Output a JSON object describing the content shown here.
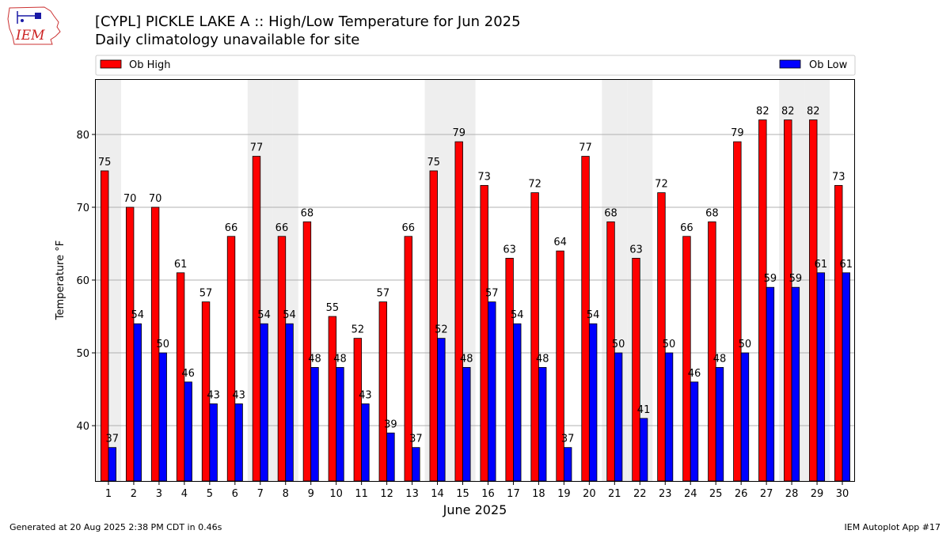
{
  "page": {
    "title": "[CYPL] PICKLE LAKE  A :: High/Low Temperature for Jun 2025",
    "subtitle": "Daily climatology unavailable for site",
    "footer_left": "Generated at 20 Aug 2025 2:38 PM CDT in 0.46s",
    "footer_right": "IEM Autoplot App #17",
    "logo_text": "IEM"
  },
  "colors": {
    "high": "#ff0000",
    "low": "#0000ff",
    "weekend_band": "#eeeeee",
    "grid": "#b0b0b0"
  },
  "chart_data": {
    "type": "bar",
    "xlabel": "June 2025",
    "ylabel": "Temperature °F",
    "ylim": [
      32.4,
      87.6
    ],
    "yticks": [
      40,
      50,
      60,
      70,
      80
    ],
    "grid": "horizontal",
    "legend_placement": "top",
    "categories": [
      "1",
      "2",
      "3",
      "4",
      "5",
      "6",
      "7",
      "8",
      "9",
      "10",
      "11",
      "12",
      "13",
      "14",
      "15",
      "16",
      "17",
      "18",
      "19",
      "20",
      "21",
      "22",
      "23",
      "24",
      "25",
      "26",
      "27",
      "28",
      "29",
      "30"
    ],
    "weekend_days": [
      1,
      7,
      8,
      14,
      15,
      21,
      22,
      28,
      29
    ],
    "series": [
      {
        "name": "Ob High",
        "values": [
          75,
          70,
          70,
          61,
          57,
          66,
          77,
          66,
          68,
          55,
          52,
          57,
          66,
          75,
          79,
          73,
          63,
          72,
          64,
          77,
          68,
          63,
          72,
          66,
          68,
          79,
          82,
          82,
          82,
          73
        ]
      },
      {
        "name": "Ob Low",
        "values": [
          37,
          54,
          50,
          46,
          43,
          43,
          54,
          54,
          48,
          48,
          43,
          39,
          37,
          52,
          48,
          57,
          54,
          48,
          37,
          54,
          50,
          41,
          50,
          46,
          48,
          50,
          59,
          59,
          61,
          61
        ]
      }
    ]
  }
}
